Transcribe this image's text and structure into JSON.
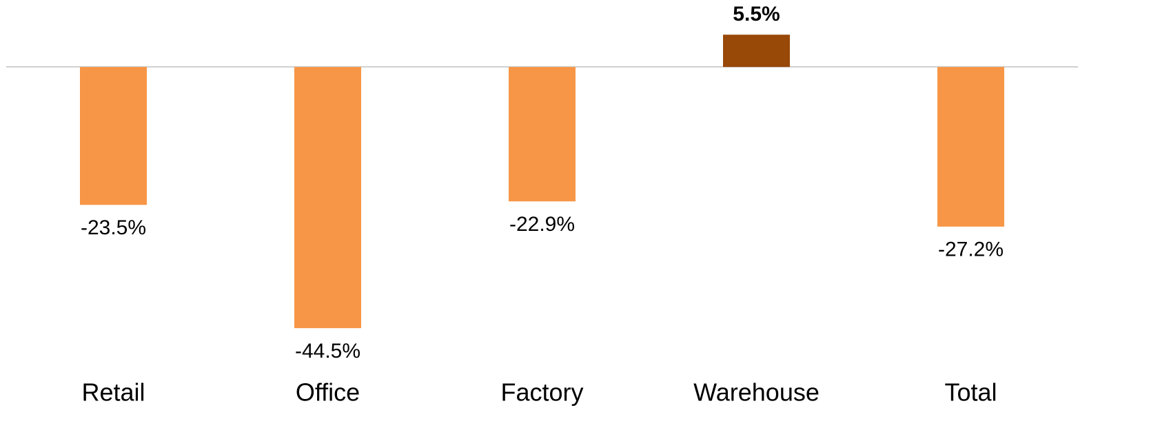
{
  "chart_data": {
    "type": "bar",
    "categories": [
      "Retail",
      "Office",
      "Factory",
      "Warehouse",
      "Total"
    ],
    "values": [
      -23.5,
      -44.5,
      -22.9,
      5.5,
      -27.2
    ],
    "value_labels": [
      "-23.5%",
      "-44.5%",
      "-22.9%",
      "5.5%",
      "-27.2%"
    ],
    "colors": [
      "#f79646",
      "#f79646",
      "#f79646",
      "#984807",
      "#f79646"
    ],
    "ylim": [
      -50,
      10
    ]
  }
}
